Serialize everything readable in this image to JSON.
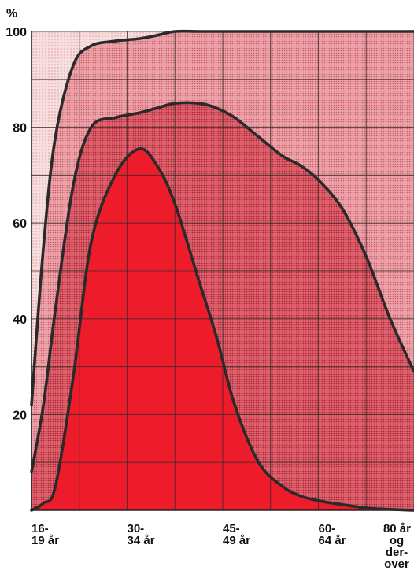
{
  "chart_data": {
    "type": "area",
    "ylabel": "%",
    "ylim": [
      0,
      100
    ],
    "yticks": [
      "20",
      "40",
      "60",
      "80",
      "100"
    ],
    "grid": true,
    "categories": [
      [
        "16-",
        "19 år"
      ],
      [
        "30-",
        "34 år"
      ],
      [
        "45-",
        "49 år"
      ],
      [
        "60-",
        "64 år"
      ],
      [
        "80 år",
        "og",
        "der-",
        "over"
      ]
    ],
    "x": [
      16,
      18,
      20,
      23,
      26,
      30,
      34,
      37,
      40,
      44,
      47,
      50,
      54,
      58,
      61,
      64,
      68,
      72,
      76,
      80
    ],
    "series": [
      {
        "values": [
          22,
          55,
          78,
          93,
          97,
          98,
          98.5,
          99.2,
          100,
          100,
          100,
          100,
          100,
          100,
          100,
          100,
          100,
          100,
          100,
          100
        ]
      },
      {
        "values": [
          8,
          22,
          42,
          68,
          80,
          82,
          83,
          84,
          85,
          85,
          84,
          82,
          78,
          74,
          72,
          69,
          63,
          53,
          40,
          29
        ]
      },
      {
        "values": [
          0,
          1.5,
          5,
          28,
          56,
          70,
          75.5,
          72,
          64,
          48,
          36,
          22,
          10,
          5,
          3,
          2,
          1.2,
          0.5,
          0.2,
          0
        ]
      }
    ],
    "colors": {
      "top_band": "#f7dede",
      "mid_band": "#eda2aa",
      "low_band": "#e0626e",
      "core": "#ee1c2b",
      "line": "#2a2a2a",
      "grid": "#3a2a2a"
    }
  }
}
